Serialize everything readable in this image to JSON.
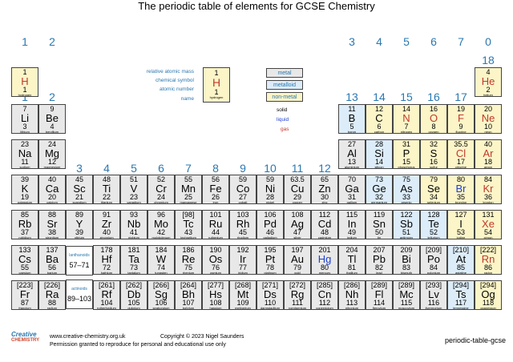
{
  "title": "The periodic table of elements for GCSE Chemistry",
  "groups_top": [
    "1",
    "2",
    "3",
    "4",
    "5",
    "6",
    "7",
    "0"
  ],
  "groups_iupac": [
    "1",
    "2",
    "3",
    "4",
    "5",
    "6",
    "7",
    "8",
    "9",
    "10",
    "11",
    "12",
    "13",
    "14",
    "15",
    "16",
    "17",
    "18"
  ],
  "key": {
    "labels": [
      "relative atomic mass",
      "chemical symbol",
      "atomic number",
      "name"
    ],
    "example": {
      "mass": "1",
      "symbol": "H",
      "number": "1",
      "name": "hydrogen"
    },
    "categories": [
      "metal",
      "metalloid",
      "non-metal"
    ],
    "states": [
      "solid",
      "liquid",
      "gas"
    ]
  },
  "series_labels": {
    "lanthanoids": "lanthanoids",
    "lanthanoids_range": "57–71",
    "actinoids": "actinoids",
    "actinoids_range": "89–103"
  },
  "footer": {
    "logo_top": "Creative",
    "logo_bottom": "CHEMISTRY",
    "website": "www.creative-chemistry.org.uk",
    "copyright": "Copyright © 2023 Nigel Saunders",
    "permission": "Permission granted to reproduce for personal and educational use only",
    "code": "periodic-table-gcse"
  },
  "colors": {
    "accent": "#2a78b0",
    "metal": "#e8e8e8",
    "metalloid": "#dcecf8",
    "nonmetal": "#fbf5c8",
    "liquid": "#1f3fd0",
    "gas": "#c0392b"
  },
  "elements": [
    {
      "m": "1",
      "s": "H",
      "z": "1",
      "n": "hydrogen",
      "c": "nonmetal",
      "st": "gas",
      "col": 1,
      "row": 1
    },
    {
      "m": "4",
      "s": "He",
      "z": "2",
      "n": "helium",
      "c": "nonmetal",
      "st": "gas",
      "col": 18,
      "row": 1
    },
    {
      "m": "7",
      "s": "Li",
      "z": "3",
      "n": "lithium",
      "c": "metal",
      "st": "solid",
      "col": 1,
      "row": 2
    },
    {
      "m": "9",
      "s": "Be",
      "z": "4",
      "n": "beryllium",
      "c": "metal",
      "st": "solid",
      "col": 2,
      "row": 2
    },
    {
      "m": "11",
      "s": "B",
      "z": "5",
      "n": "boron",
      "c": "metalloid",
      "st": "solid",
      "col": 13,
      "row": 2
    },
    {
      "m": "12",
      "s": "C",
      "z": "6",
      "n": "carbon",
      "c": "nonmetal",
      "st": "solid",
      "col": 14,
      "row": 2
    },
    {
      "m": "14",
      "s": "N",
      "z": "7",
      "n": "nitrogen",
      "c": "nonmetal",
      "st": "gas",
      "col": 15,
      "row": 2
    },
    {
      "m": "16",
      "s": "O",
      "z": "8",
      "n": "oxygen",
      "c": "nonmetal",
      "st": "gas",
      "col": 16,
      "row": 2
    },
    {
      "m": "19",
      "s": "F",
      "z": "9",
      "n": "fluorine",
      "c": "nonmetal",
      "st": "gas",
      "col": 17,
      "row": 2
    },
    {
      "m": "20",
      "s": "Ne",
      "z": "10",
      "n": "neon",
      "c": "nonmetal",
      "st": "gas",
      "col": 18,
      "row": 2
    },
    {
      "m": "23",
      "s": "Na",
      "z": "11",
      "n": "sodium",
      "c": "metal",
      "st": "solid",
      "col": 1,
      "row": 3
    },
    {
      "m": "24",
      "s": "Mg",
      "z": "12",
      "n": "magnesium",
      "c": "metal",
      "st": "solid",
      "col": 2,
      "row": 3
    },
    {
      "m": "27",
      "s": "Al",
      "z": "13",
      "n": "aluminium",
      "c": "metal",
      "st": "solid",
      "col": 13,
      "row": 3
    },
    {
      "m": "28",
      "s": "Si",
      "z": "14",
      "n": "silicon",
      "c": "metalloid",
      "st": "solid",
      "col": 14,
      "row": 3
    },
    {
      "m": "31",
      "s": "P",
      "z": "15",
      "n": "phosphorus",
      "c": "nonmetal",
      "st": "solid",
      "col": 15,
      "row": 3
    },
    {
      "m": "32",
      "s": "S",
      "z": "16",
      "n": "sulfur",
      "c": "nonmetal",
      "st": "solid",
      "col": 16,
      "row": 3
    },
    {
      "m": "35.5",
      "s": "Cl",
      "z": "17",
      "n": "chlorine",
      "c": "nonmetal",
      "st": "gas",
      "col": 17,
      "row": 3
    },
    {
      "m": "40",
      "s": "Ar",
      "z": "18",
      "n": "argon",
      "c": "nonmetal",
      "st": "gas",
      "col": 18,
      "row": 3
    },
    {
      "m": "39",
      "s": "K",
      "z": "19",
      "n": "potassium",
      "c": "metal",
      "st": "solid",
      "col": 1,
      "row": 4
    },
    {
      "m": "40",
      "s": "Ca",
      "z": "20",
      "n": "calcium",
      "c": "metal",
      "st": "solid",
      "col": 2,
      "row": 4
    },
    {
      "m": "45",
      "s": "Sc",
      "z": "21",
      "n": "scandium",
      "c": "metal",
      "st": "solid",
      "col": 3,
      "row": 4
    },
    {
      "m": "48",
      "s": "Ti",
      "z": "22",
      "n": "titanium",
      "c": "metal",
      "st": "solid",
      "col": 4,
      "row": 4
    },
    {
      "m": "51",
      "s": "V",
      "z": "23",
      "n": "vanadium",
      "c": "metal",
      "st": "solid",
      "col": 5,
      "row": 4
    },
    {
      "m": "52",
      "s": "Cr",
      "z": "24",
      "n": "chromium",
      "c": "metal",
      "st": "solid",
      "col": 6,
      "row": 4
    },
    {
      "m": "55",
      "s": "Mn",
      "z": "25",
      "n": "manganese",
      "c": "metal",
      "st": "solid",
      "col": 7,
      "row": 4
    },
    {
      "m": "56",
      "s": "Fe",
      "z": "26",
      "n": "iron",
      "c": "metal",
      "st": "solid",
      "col": 8,
      "row": 4
    },
    {
      "m": "59",
      "s": "Co",
      "z": "27",
      "n": "cobalt",
      "c": "metal",
      "st": "solid",
      "col": 9,
      "row": 4
    },
    {
      "m": "59",
      "s": "Ni",
      "z": "28",
      "n": "nickel",
      "c": "metal",
      "st": "solid",
      "col": 10,
      "row": 4
    },
    {
      "m": "63.5",
      "s": "Cu",
      "z": "29",
      "n": "copper",
      "c": "metal",
      "st": "solid",
      "col": 11,
      "row": 4
    },
    {
      "m": "65",
      "s": "Zn",
      "z": "30",
      "n": "zinc",
      "c": "metal",
      "st": "solid",
      "col": 12,
      "row": 4
    },
    {
      "m": "70",
      "s": "Ga",
      "z": "31",
      "n": "gallium",
      "c": "metal",
      "st": "solid",
      "col": 13,
      "row": 4
    },
    {
      "m": "73",
      "s": "Ge",
      "z": "32",
      "n": "germanium",
      "c": "metalloid",
      "st": "solid",
      "col": 14,
      "row": 4
    },
    {
      "m": "75",
      "s": "As",
      "z": "33",
      "n": "arsenic",
      "c": "metalloid",
      "st": "solid",
      "col": 15,
      "row": 4
    },
    {
      "m": "79",
      "s": "Se",
      "z": "34",
      "n": "selenium",
      "c": "nonmetal",
      "st": "solid",
      "col": 16,
      "row": 4
    },
    {
      "m": "80",
      "s": "Br",
      "z": "35",
      "n": "bromine",
      "c": "nonmetal",
      "st": "liquid",
      "col": 17,
      "row": 4
    },
    {
      "m": "84",
      "s": "Kr",
      "z": "36",
      "n": "krypton",
      "c": "nonmetal",
      "st": "gas",
      "col": 18,
      "row": 4
    },
    {
      "m": "85",
      "s": "Rb",
      "z": "37",
      "n": "rubidium",
      "c": "metal",
      "st": "solid",
      "col": 1,
      "row": 5
    },
    {
      "m": "88",
      "s": "Sr",
      "z": "38",
      "n": "strontium",
      "c": "metal",
      "st": "solid",
      "col": 2,
      "row": 5
    },
    {
      "m": "89",
      "s": "Y",
      "z": "39",
      "n": "yttrium",
      "c": "metal",
      "st": "solid",
      "col": 3,
      "row": 5
    },
    {
      "m": "91",
      "s": "Zr",
      "z": "40",
      "n": "zirconium",
      "c": "metal",
      "st": "solid",
      "col": 4,
      "row": 5
    },
    {
      "m": "93",
      "s": "Nb",
      "z": "41",
      "n": "niobium",
      "c": "metal",
      "st": "solid",
      "col": 5,
      "row": 5
    },
    {
      "m": "96",
      "s": "Mo",
      "z": "42",
      "n": "molybdenum",
      "c": "metal",
      "st": "solid",
      "col": 6,
      "row": 5
    },
    {
      "m": "[98]",
      "s": "Tc",
      "z": "43",
      "n": "technetium",
      "c": "metal",
      "st": "solid",
      "col": 7,
      "row": 5
    },
    {
      "m": "101",
      "s": "Ru",
      "z": "44",
      "n": "ruthenium",
      "c": "metal",
      "st": "solid",
      "col": 8,
      "row": 5
    },
    {
      "m": "103",
      "s": "Rh",
      "z": "45",
      "n": "rhodium",
      "c": "metal",
      "st": "solid",
      "col": 9,
      "row": 5
    },
    {
      "m": "106",
      "s": "Pd",
      "z": "46",
      "n": "palladium",
      "c": "metal",
      "st": "solid",
      "col": 10,
      "row": 5
    },
    {
      "m": "108",
      "s": "Ag",
      "z": "47",
      "n": "silver",
      "c": "metal",
      "st": "solid",
      "col": 11,
      "row": 5
    },
    {
      "m": "112",
      "s": "Cd",
      "z": "48",
      "n": "cadmium",
      "c": "metal",
      "st": "solid",
      "col": 12,
      "row": 5
    },
    {
      "m": "115",
      "s": "In",
      "z": "49",
      "n": "indium",
      "c": "metal",
      "st": "solid",
      "col": 13,
      "row": 5
    },
    {
      "m": "119",
      "s": "Sn",
      "z": "50",
      "n": "tin",
      "c": "metal",
      "st": "solid",
      "col": 14,
      "row": 5
    },
    {
      "m": "122",
      "s": "Sb",
      "z": "51",
      "n": "antimony",
      "c": "metalloid",
      "st": "solid",
      "col": 15,
      "row": 5
    },
    {
      "m": "128",
      "s": "Te",
      "z": "52",
      "n": "tellurium",
      "c": "metalloid",
      "st": "solid",
      "col": 16,
      "row": 5
    },
    {
      "m": "127",
      "s": "I",
      "z": "53",
      "n": "iodine",
      "c": "nonmetal",
      "st": "solid",
      "col": 17,
      "row": 5
    },
    {
      "m": "131",
      "s": "Xe",
      "z": "54",
      "n": "xenon",
      "c": "nonmetal",
      "st": "gas",
      "col": 18,
      "row": 5
    },
    {
      "m": "133",
      "s": "Cs",
      "z": "55",
      "n": "caesium",
      "c": "metal",
      "st": "solid",
      "col": 1,
      "row": 6
    },
    {
      "m": "137",
      "s": "Ba",
      "z": "56",
      "n": "barium",
      "c": "metal",
      "st": "solid",
      "col": 2,
      "row": 6
    },
    {
      "m": "178",
      "s": "Hf",
      "z": "72",
      "n": "hafnium",
      "c": "metal",
      "st": "solid",
      "col": 4,
      "row": 6
    },
    {
      "m": "181",
      "s": "Ta",
      "z": "73",
      "n": "tantalum",
      "c": "metal",
      "st": "solid",
      "col": 5,
      "row": 6
    },
    {
      "m": "184",
      "s": "W",
      "z": "74",
      "n": "tungsten",
      "c": "metal",
      "st": "solid",
      "col": 6,
      "row": 6
    },
    {
      "m": "186",
      "s": "Re",
      "z": "75",
      "n": "rhenium",
      "c": "metal",
      "st": "solid",
      "col": 7,
      "row": 6
    },
    {
      "m": "190",
      "s": "Os",
      "z": "76",
      "n": "osmium",
      "c": "metal",
      "st": "solid",
      "col": 8,
      "row": 6
    },
    {
      "m": "192",
      "s": "Ir",
      "z": "77",
      "n": "iridium",
      "c": "metal",
      "st": "solid",
      "col": 9,
      "row": 6
    },
    {
      "m": "195",
      "s": "Pt",
      "z": "78",
      "n": "platinum",
      "c": "metal",
      "st": "solid",
      "col": 10,
      "row": 6
    },
    {
      "m": "197",
      "s": "Au",
      "z": "79",
      "n": "gold",
      "c": "metal",
      "st": "solid",
      "col": 11,
      "row": 6
    },
    {
      "m": "201",
      "s": "Hg",
      "z": "80",
      "n": "mercury",
      "c": "metal",
      "st": "liquid",
      "col": 12,
      "row": 6
    },
    {
      "m": "204",
      "s": "Tl",
      "z": "81",
      "n": "thallium",
      "c": "metal",
      "st": "solid",
      "col": 13,
      "row": 6
    },
    {
      "m": "207",
      "s": "Pb",
      "z": "82",
      "n": "lead",
      "c": "metal",
      "st": "solid",
      "col": 14,
      "row": 6
    },
    {
      "m": "209",
      "s": "Bi",
      "z": "83",
      "n": "bismuth",
      "c": "metal",
      "st": "solid",
      "col": 15,
      "row": 6
    },
    {
      "m": "[209]",
      "s": "Po",
      "z": "84",
      "n": "polonium",
      "c": "metal",
      "st": "solid",
      "col": 16,
      "row": 6
    },
    {
      "m": "[210]",
      "s": "At",
      "z": "85",
      "n": "astatine",
      "c": "metalloid",
      "st": "solid",
      "col": 17,
      "row": 6
    },
    {
      "m": "[222]",
      "s": "Rn",
      "z": "86",
      "n": "radon",
      "c": "nonmetal",
      "st": "gas",
      "col": 18,
      "row": 6
    },
    {
      "m": "[223]",
      "s": "Fr",
      "z": "87",
      "n": "francium",
      "c": "metal",
      "st": "solid",
      "col": 1,
      "row": 7
    },
    {
      "m": "[226]",
      "s": "Ra",
      "z": "88",
      "n": "radium",
      "c": "metal",
      "st": "solid",
      "col": 2,
      "row": 7
    },
    {
      "m": "[261]",
      "s": "Rf",
      "z": "104",
      "n": "rutherfordium",
      "c": "metal",
      "st": "solid",
      "col": 4,
      "row": 7
    },
    {
      "m": "[262]",
      "s": "Db",
      "z": "105",
      "n": "dubnium",
      "c": "metal",
      "st": "solid",
      "col": 5,
      "row": 7
    },
    {
      "m": "[266]",
      "s": "Sg",
      "z": "106",
      "n": "seaborgium",
      "c": "metal",
      "st": "solid",
      "col": 6,
      "row": 7
    },
    {
      "m": "[264]",
      "s": "Bh",
      "z": "107",
      "n": "bohrium",
      "c": "metal",
      "st": "solid",
      "col": 7,
      "row": 7
    },
    {
      "m": "[277]",
      "s": "Hs",
      "z": "108",
      "n": "hassium",
      "c": "metal",
      "st": "solid",
      "col": 8,
      "row": 7
    },
    {
      "m": "[268]",
      "s": "Mt",
      "z": "109",
      "n": "meitnerium",
      "c": "metal",
      "st": "solid",
      "col": 9,
      "row": 7
    },
    {
      "m": "[271]",
      "s": "Ds",
      "z": "110",
      "n": "darmstadtium",
      "c": "metal",
      "st": "solid",
      "col": 10,
      "row": 7
    },
    {
      "m": "[272]",
      "s": "Rg",
      "z": "111",
      "n": "roentgenium",
      "c": "metal",
      "st": "solid",
      "col": 11,
      "row": 7
    },
    {
      "m": "[285]",
      "s": "Cn",
      "z": "112",
      "n": "copernicium",
      "c": "metal",
      "st": "solid",
      "col": 12,
      "row": 7
    },
    {
      "m": "[286]",
      "s": "Nh",
      "z": "113",
      "n": "nihonium",
      "c": "metal",
      "st": "solid",
      "col": 13,
      "row": 7
    },
    {
      "m": "[289]",
      "s": "Fl",
      "z": "114",
      "n": "flerovium",
      "c": "metal",
      "st": "solid",
      "col": 14,
      "row": 7
    },
    {
      "m": "[289]",
      "s": "Mc",
      "z": "115",
      "n": "moscovium",
      "c": "metal",
      "st": "solid",
      "col": 15,
      "row": 7
    },
    {
      "m": "[293]",
      "s": "Lv",
      "z": "116",
      "n": "livermorium",
      "c": "metal",
      "st": "solid",
      "col": 16,
      "row": 7
    },
    {
      "m": "[294]",
      "s": "Ts",
      "z": "117",
      "n": "tennessine",
      "c": "metalloid",
      "st": "solid",
      "col": 17,
      "row": 7
    },
    {
      "m": "[294]",
      "s": "Og",
      "z": "118",
      "n": "oganesson",
      "c": "nonmetal",
      "st": "solid",
      "col": 18,
      "row": 7
    }
  ]
}
